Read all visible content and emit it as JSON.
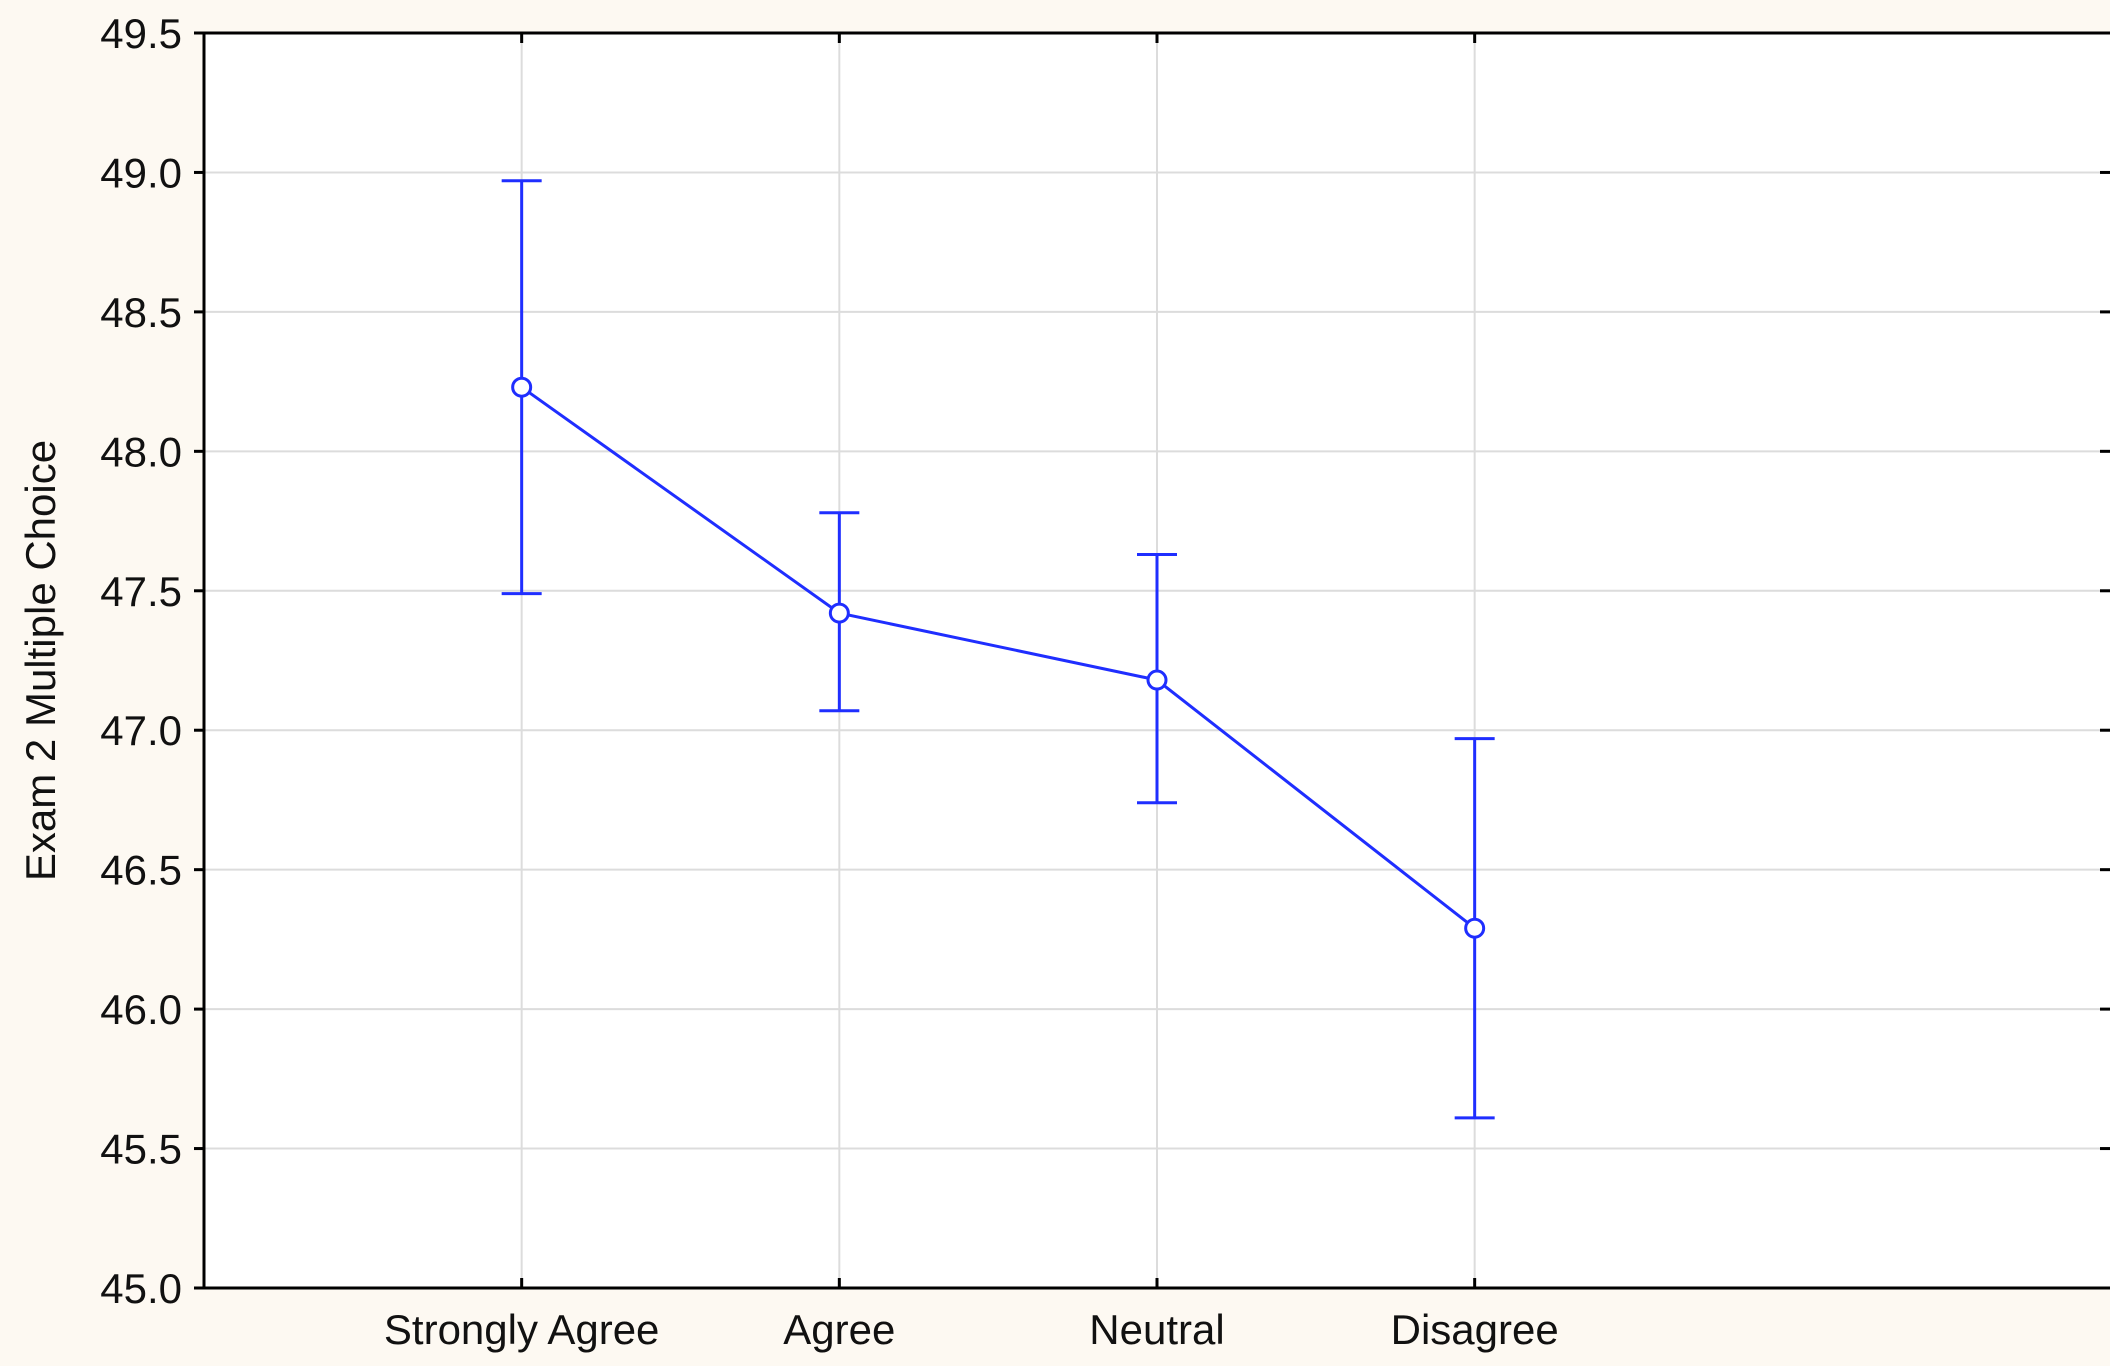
{
  "chart_data": {
    "type": "line",
    "xlabel": "",
    "ylabel": "Exam 2 Multiple Choice",
    "categories": [
      "Strongly Agree",
      "Agree",
      "Neutral",
      "Disagree"
    ],
    "series": [
      {
        "values": [
          48.23,
          47.42,
          47.18,
          46.29
        ],
        "error_low": [
          47.49,
          47.07,
          46.74,
          45.61
        ],
        "error_high": [
          48.97,
          47.78,
          47.63,
          46.97
        ]
      }
    ],
    "ylim": [
      45.0,
      49.5
    ],
    "yticks": [
      "45.0",
      "45.5",
      "46.0",
      "46.5",
      "47.0",
      "47.5",
      "48.0",
      "48.5",
      "49.0",
      "49.5"
    ],
    "grid": true,
    "legend": "none",
    "colors": {
      "series": "#1f2eff",
      "grid": "#dcdcdc",
      "axis": "#000000",
      "background": "#fdf9f2",
      "plot_background": "#ffffff"
    }
  }
}
